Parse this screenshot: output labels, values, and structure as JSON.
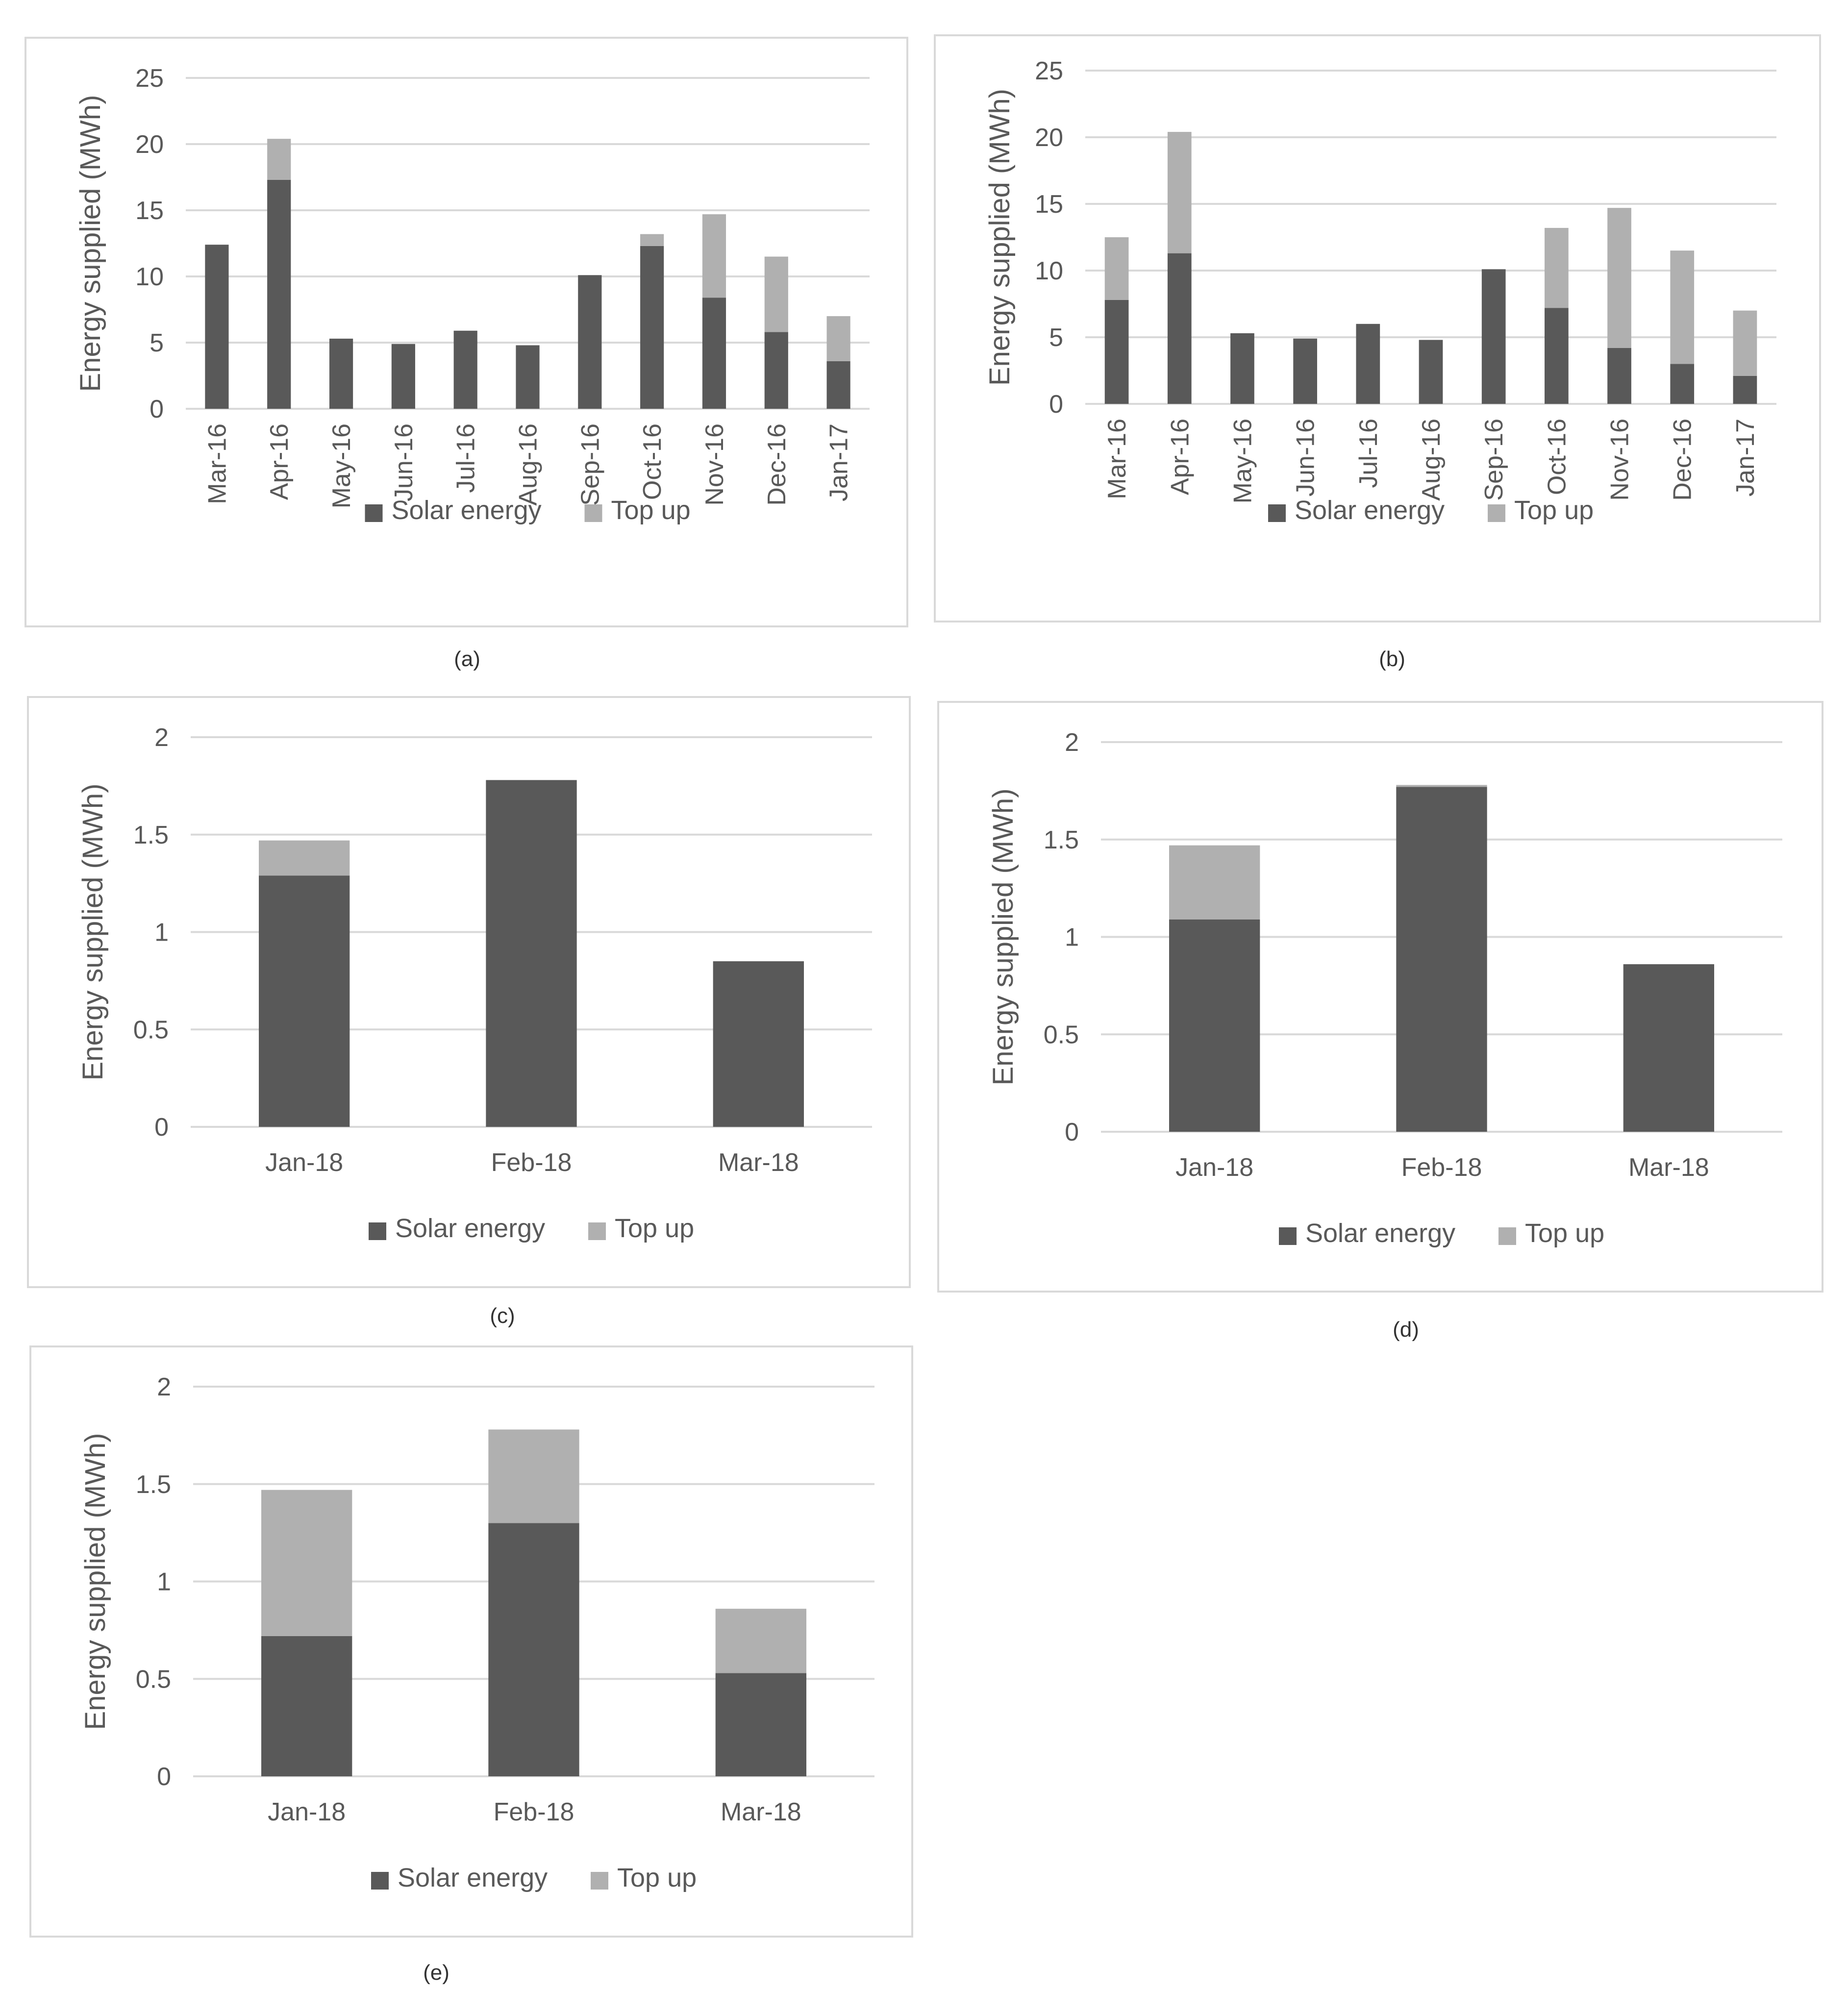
{
  "charts": [
    {
      "id": "a",
      "caption": "(a)",
      "chart_data": {
        "type": "stacked-bar",
        "categories": [
          "Mar-16",
          "Apr-16",
          "May-16",
          "Jun-16",
          "Jul-16",
          "Aug-16",
          "Sep-16",
          "Oct-16",
          "Nov-16",
          "Dec-16",
          "Jan-17"
        ],
        "series": [
          {
            "name": "Solar energy",
            "color": "#595959",
            "values": [
              12.4,
              17.3,
              5.3,
              4.9,
              5.9,
              4.8,
              10.1,
              12.3,
              8.4,
              5.8,
              3.6
            ]
          },
          {
            "name": "Top up",
            "color": "#b0b0b0",
            "values": [
              0,
              3.1,
              0,
              0,
              0,
              0,
              0,
              0.9,
              6.3,
              5.7,
              3.4
            ]
          }
        ],
        "ylabel": "Energy supplied (MWh)",
        "ylim": [
          0,
          25
        ],
        "yticks": [
          0,
          5,
          10,
          15,
          20,
          25
        ],
        "ytick_labels": [
          "0",
          "5",
          "10",
          "15",
          "20",
          "25"
        ],
        "rotate_x_labels": true,
        "grid": true,
        "legend": "bottom"
      }
    },
    {
      "id": "b",
      "caption": "(b)",
      "chart_data": {
        "type": "stacked-bar",
        "categories": [
          "Mar-16",
          "Apr-16",
          "May-16",
          "Jun-16",
          "Jul-16",
          "Aug-16",
          "Sep-16",
          "Oct-16",
          "Nov-16",
          "Dec-16",
          "Jan-17"
        ],
        "series": [
          {
            "name": "Solar energy",
            "color": "#595959",
            "values": [
              7.8,
              11.3,
              5.3,
              4.9,
              6.0,
              4.8,
              10.1,
              7.2,
              4.2,
              3.0,
              2.1
            ]
          },
          {
            "name": "Top up",
            "color": "#b0b0b0",
            "values": [
              4.7,
              9.1,
              0,
              0,
              0,
              0,
              0,
              6.0,
              10.5,
              8.5,
              4.9
            ]
          }
        ],
        "ylabel": "Energy supplied (MWh)",
        "ylim": [
          0,
          25
        ],
        "yticks": [
          0,
          5,
          10,
          15,
          20,
          25
        ],
        "ytick_labels": [
          "0",
          "5",
          "10",
          "15",
          "20",
          "25"
        ],
        "rotate_x_labels": true,
        "grid": true,
        "legend": "bottom"
      }
    },
    {
      "id": "c",
      "caption": "(c)",
      "chart_data": {
        "type": "stacked-bar",
        "categories": [
          "Jan-18",
          "Feb-18",
          "Mar-18"
        ],
        "series": [
          {
            "name": "Solar energy",
            "color": "#595959",
            "values": [
              1.29,
              1.78,
              0.85
            ]
          },
          {
            "name": "Top up",
            "color": "#b0b0b0",
            "values": [
              0.18,
              0,
              0
            ]
          }
        ],
        "ylabel": "Energy supplied (MWh)",
        "ylim": [
          0,
          2
        ],
        "yticks": [
          0,
          0.5,
          1,
          1.5,
          2
        ],
        "ytick_labels": [
          "0",
          "0.5",
          "1",
          "1.5",
          "2"
        ],
        "rotate_x_labels": false,
        "grid": true,
        "legend": "bottom"
      }
    },
    {
      "id": "d",
      "caption": "(d)",
      "chart_data": {
        "type": "stacked-bar",
        "categories": [
          "Jan-18",
          "Feb-18",
          "Mar-18"
        ],
        "series": [
          {
            "name": "Solar energy",
            "color": "#595959",
            "values": [
              1.09,
              1.77,
              0.86
            ]
          },
          {
            "name": "Top up",
            "color": "#b0b0b0",
            "values": [
              0.38,
              0.01,
              0
            ]
          }
        ],
        "ylabel": "Energy supplied (MWh)",
        "ylim": [
          0,
          2
        ],
        "yticks": [
          0,
          0.5,
          1,
          1.5,
          2
        ],
        "ytick_labels": [
          "0",
          "0.5",
          "1",
          "1.5",
          "2"
        ],
        "rotate_x_labels": false,
        "grid": true,
        "legend": "bottom"
      }
    },
    {
      "id": "e",
      "caption": "(e)",
      "chart_data": {
        "type": "stacked-bar",
        "categories": [
          "Jan-18",
          "Feb-18",
          "Mar-18"
        ],
        "series": [
          {
            "name": "Solar energy",
            "color": "#595959",
            "values": [
              0.72,
              1.3,
              0.53
            ]
          },
          {
            "name": "Top up",
            "color": "#b0b0b0",
            "values": [
              0.75,
              0.48,
              0.33
            ]
          }
        ],
        "ylabel": "Energy supplied (MWh)",
        "ylim": [
          0,
          2
        ],
        "yticks": [
          0,
          0.5,
          1,
          1.5,
          2
        ],
        "ytick_labels": [
          "0",
          "0.5",
          "1",
          "1.5",
          "2"
        ],
        "rotate_x_labels": false,
        "grid": true,
        "legend": "bottom"
      }
    }
  ]
}
